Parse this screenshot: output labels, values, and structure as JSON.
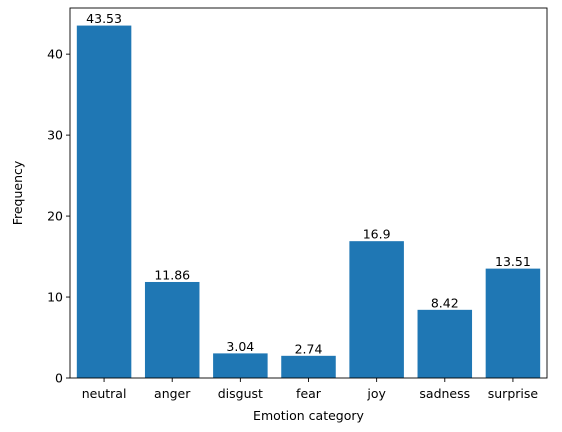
{
  "chart_data": {
    "type": "bar",
    "categories": [
      "neutral",
      "anger",
      "disgust",
      "fear",
      "joy",
      "sadness",
      "surprise"
    ],
    "values": [
      43.53,
      11.86,
      3.04,
      2.74,
      16.9,
      8.42,
      13.51
    ],
    "data_labels": [
      "43.53",
      "11.86",
      "3.04",
      "2.74",
      "16.9",
      "8.42",
      "13.51"
    ],
    "xlabel": "Emotion category",
    "ylabel": "Frequency",
    "ylim": [
      0,
      45.7
    ],
    "yticks": [
      0,
      10,
      20,
      30,
      40
    ],
    "grid": false,
    "bar_color": "#1f77b4"
  }
}
